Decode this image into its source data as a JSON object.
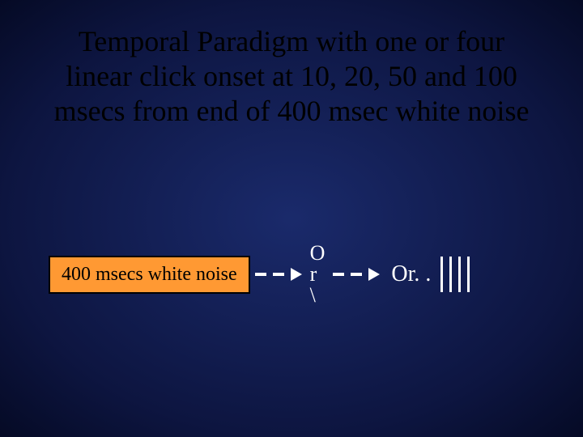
{
  "background": {
    "gradient_center": "#1a2a6b",
    "gradient_mid": "#0d1540",
    "gradient_edge": "#050a25"
  },
  "title": {
    "text": "Temporal Paradigm with one or four linear click onset at 10, 20, 50 and 100 msecs from end of 400 msec white noise",
    "color": "#000000",
    "fontsize": 36
  },
  "noise_box": {
    "label": "400 msecs white noise",
    "bg_color": "#ff9933",
    "border_color": "#000000",
    "text_color": "#000000",
    "fontsize": 24
  },
  "or_block": {
    "text": "O\nr\n\\",
    "color": "#ffffff",
    "fontsize": 26
  },
  "or_label": {
    "text": "Or. .",
    "color": "#ffffff",
    "fontsize": 28
  },
  "arrow": {
    "dash_color": "#ffffff",
    "dash_count": 2
  },
  "bars": {
    "count": 4,
    "color": "#ffffff",
    "height": 44,
    "width": 3,
    "gap": 8
  }
}
